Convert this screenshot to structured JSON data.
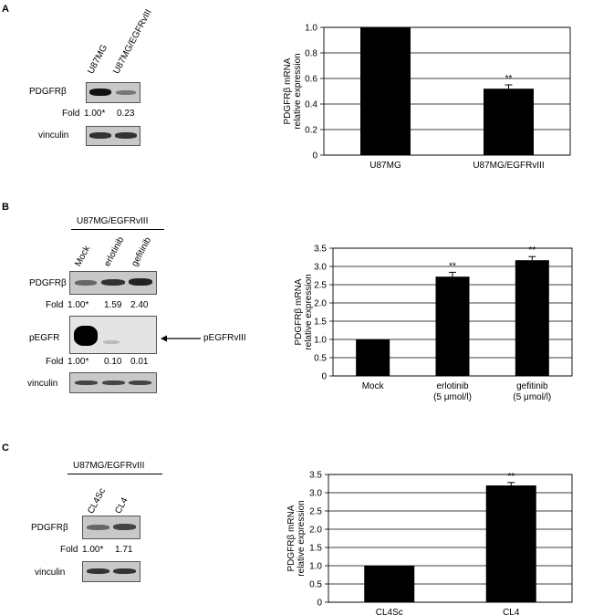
{
  "panels": [
    {
      "letter": "A",
      "blot": {
        "group_label": "",
        "lanes": [
          "U87MG",
          "U87MG/EGFRvIII"
        ],
        "rows": [
          {
            "label": "PDGFRβ",
            "fold_label": "Fold",
            "folds": [
              "1.00*",
              "0.23"
            ]
          },
          {
            "label": "vinculin"
          }
        ]
      }
    },
    {
      "letter": "B",
      "blot": {
        "group_label": "U87MG/EGFRvIII",
        "lanes": [
          "Mock",
          "erlotinib",
          "gefitinib"
        ],
        "rows": [
          {
            "label": "PDGFRβ",
            "fold_label": "Fold",
            "folds": [
              "1.00*",
              "1.59",
              "2.40"
            ]
          },
          {
            "label": "pEGFR",
            "fold_label": "Fold",
            "folds": [
              "1.00*",
              "0.10",
              "0.01"
            ],
            "arrow_label": "pEGFRvIII"
          },
          {
            "label": "vinculin"
          }
        ]
      }
    },
    {
      "letter": "C",
      "blot": {
        "group_label": "U87MG/EGFRvIII",
        "lanes": [
          "CL4Sc",
          "CL4"
        ],
        "rows": [
          {
            "label": "PDGFRβ",
            "fold_label": "Fold",
            "folds": [
              "1.00*",
              "1.71"
            ]
          },
          {
            "label": "vinculin"
          }
        ]
      }
    }
  ],
  "chart_data": [
    {
      "type": "bar",
      "categories": [
        "U87MG",
        "U87MG/EGFRvIII"
      ],
      "values": [
        1.0,
        0.52
      ],
      "errors": [
        0,
        0.03
      ],
      "significance": [
        "",
        "**"
      ],
      "ylabel": [
        "PDGFRβ mRNA",
        "relative expression"
      ],
      "ylim": [
        0,
        1.0
      ],
      "yticks": [
        "0",
        "0.2",
        "0.4",
        "0.6",
        "0.8",
        "1.0"
      ],
      "ytick_values": [
        0,
        0.2,
        0.4,
        0.6,
        0.8,
        1.0
      ],
      "grid": true
    },
    {
      "type": "bar",
      "categories": [
        "Mock",
        "erlotinib\n(5 μmol/l)",
        "gefitinib\n(5 μmol/l)"
      ],
      "values": [
        1.0,
        2.72,
        3.17
      ],
      "errors": [
        0,
        0.12,
        0.1
      ],
      "significance": [
        "",
        "**",
        "**"
      ],
      "ylabel": [
        "PDGFRβ mRNA",
        "relative expression"
      ],
      "ylim": [
        0,
        3.5
      ],
      "yticks": [
        "0",
        "0.5",
        "1.0",
        "1.5",
        "2.0",
        "2.5",
        "3.0",
        "3.5"
      ],
      "ytick_values": [
        0,
        0.5,
        1.0,
        1.5,
        2.0,
        2.5,
        3.0,
        3.5
      ],
      "grid": true
    },
    {
      "type": "bar",
      "categories": [
        "CL4Sc",
        "CL4"
      ],
      "values": [
        1.0,
        3.2
      ],
      "errors": [
        0,
        0.08
      ],
      "significance": [
        "",
        "**"
      ],
      "ylabel": [
        "PDGFRβ mRNA",
        "relative expression"
      ],
      "ylim": [
        0,
        3.5
      ],
      "yticks": [
        "0",
        "0.5",
        "1.0",
        "1.5",
        "2.0",
        "2.5",
        "3.0",
        "3.5"
      ],
      "ytick_values": [
        0,
        0.5,
        1.0,
        1.5,
        2.0,
        2.5,
        3.0,
        3.5
      ],
      "grid": true
    }
  ]
}
